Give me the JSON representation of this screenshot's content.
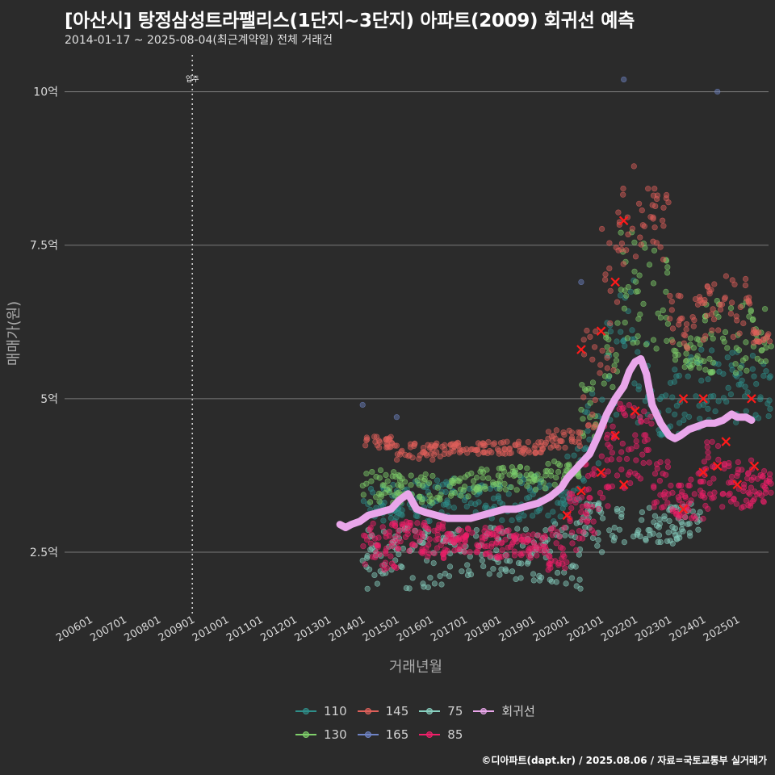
{
  "header": {
    "title": "[아산시] 탕정삼성트라팰리스(1단지~3단지) 아파트(2009) 회귀선 예측",
    "subtitle": "2014-01-17 ~ 2025-08-04(최근계약일) 전체 거래건"
  },
  "footer": {
    "caption": "©디아파트(dapt.kr) / 2025.08.06 / 자료=국토교통부 실거래가"
  },
  "chart_data": {
    "type": "scatter",
    "title": "[아산시] 탕정삼성트라팰리스(1단지~3단지) 아파트(2009) 회귀선 예측",
    "xlabel": "거래년월",
    "ylabel": "매매가(원)",
    "x_range": [
      "2005-04",
      "2025-12"
    ],
    "ylim": [
      1.5,
      10.6
    ],
    "y_unit": "억",
    "y_ticks": [
      {
        "value": 2.5,
        "label": "2.5억"
      },
      {
        "value": 5,
        "label": "5억"
      },
      {
        "value": 7.5,
        "label": "7.5억"
      },
      {
        "value": 10,
        "label": "10억"
      }
    ],
    "x_ticks": [
      "200601",
      "200701",
      "200801",
      "200901",
      "201001",
      "201101",
      "201201",
      "201301",
      "201401",
      "201501",
      "201601",
      "201701",
      "201801",
      "201901",
      "202001",
      "202101",
      "202201",
      "202301",
      "202401",
      "202501"
    ],
    "annotation": {
      "label": "입주",
      "date": "2009-01"
    },
    "grid": "horizontal",
    "legend_position": "bottom",
    "legend": [
      {
        "name": "110",
        "color": "#2f8f8a"
      },
      {
        "name": "130",
        "color": "#7fcf6a"
      },
      {
        "name": "145",
        "color": "#e0605a"
      },
      {
        "name": "165",
        "color": "#6f84c6"
      },
      {
        "name": "75",
        "color": "#88d0c0"
      },
      {
        "name": "85",
        "color": "#f0206a"
      },
      {
        "name": "회귀선",
        "color": "#e9a6ea"
      }
    ],
    "regression_line": {
      "name": "회귀선",
      "x": [
        "2013-05",
        "2013-07",
        "2013-09",
        "2013-12",
        "2014-03",
        "2014-07",
        "2014-11",
        "2015-02",
        "2015-05",
        "2015-08",
        "2015-11",
        "2016-03",
        "2016-07",
        "2016-11",
        "2017-03",
        "2017-07",
        "2017-11",
        "2018-03",
        "2018-07",
        "2018-11",
        "2019-03",
        "2019-07",
        "2019-11",
        "2020-01",
        "2020-05",
        "2020-09",
        "2020-12",
        "2021-03",
        "2021-06",
        "2021-09",
        "2021-11",
        "2022-01",
        "2022-03",
        "2022-05",
        "2022-07",
        "2022-10",
        "2023-01",
        "2023-03",
        "2023-05",
        "2023-08",
        "2023-11",
        "2024-02",
        "2024-05",
        "2024-08",
        "2024-11",
        "2025-01",
        "2025-04",
        "2025-06"
      ],
      "y": [
        2.95,
        2.9,
        2.95,
        3.0,
        3.1,
        3.15,
        3.2,
        3.35,
        3.45,
        3.2,
        3.15,
        3.1,
        3.05,
        3.05,
        3.05,
        3.1,
        3.15,
        3.2,
        3.2,
        3.25,
        3.3,
        3.4,
        3.55,
        3.7,
        3.9,
        4.1,
        4.4,
        4.75,
        5.0,
        5.2,
        5.45,
        5.6,
        5.65,
        5.4,
        4.9,
        4.6,
        4.4,
        4.35,
        4.4,
        4.5,
        4.55,
        4.6,
        4.6,
        4.65,
        4.75,
        4.7,
        4.7,
        4.65
      ]
    },
    "scatter_series": [
      {
        "name": "110",
        "periods": [
          [
            "2014-01",
            3.0,
            3.6
          ],
          [
            "2015-06",
            3.0,
            3.7
          ],
          [
            "2017-01",
            3.0,
            3.6
          ],
          [
            "2018-06",
            3.0,
            3.8
          ],
          [
            "2019-06",
            3.0,
            3.6
          ],
          [
            "2020-01",
            3.3,
            4.2
          ],
          [
            "2020-07",
            3.8,
            5.2
          ],
          [
            "2021-01",
            4.6,
            6.3
          ],
          [
            "2021-07",
            5.0,
            7.0
          ],
          [
            "2022-01",
            4.6,
            6.0
          ],
          [
            "2022-07",
            4.4,
            5.2
          ],
          [
            "2023-01",
            4.4,
            5.5
          ],
          [
            "2023-07",
            4.5,
            5.8
          ],
          [
            "2024-01",
            4.5,
            5.8
          ],
          [
            "2024-07",
            4.6,
            5.8
          ],
          [
            "2025-01",
            4.6,
            5.8
          ],
          [
            "2025-07",
            4.6,
            5.6
          ]
        ]
      },
      {
        "name": "130",
        "periods": [
          [
            "2014-01",
            3.3,
            3.9
          ],
          [
            "2015-01",
            3.3,
            3.8
          ],
          [
            "2016-06",
            3.4,
            3.8
          ],
          [
            "2017-06",
            3.5,
            3.9
          ],
          [
            "2018-06",
            3.5,
            3.9
          ],
          [
            "2019-06",
            3.6,
            4.0
          ],
          [
            "2020-06",
            4.3,
            5.3
          ],
          [
            "2021-01",
            5.1,
            6.3
          ],
          [
            "2021-07",
            5.8,
            8.0
          ],
          [
            "2022-01",
            5.8,
            7.6
          ],
          [
            "2023-01",
            5.5,
            6.0
          ],
          [
            "2024-01",
            5.4,
            6.6
          ],
          [
            "2025-07",
            5.5,
            6.5
          ]
        ]
      },
      {
        "name": "145",
        "periods": [
          [
            "2014-01",
            4.2,
            4.4
          ],
          [
            "2015-01",
            4.0,
            4.3
          ],
          [
            "2016-06",
            4.1,
            4.3
          ],
          [
            "2017-06",
            4.1,
            4.3
          ],
          [
            "2018-06",
            4.1,
            4.3
          ],
          [
            "2019-06",
            4.2,
            4.5
          ],
          [
            "2020-06",
            4.5,
            6.2
          ],
          [
            "2021-01",
            5.4,
            7.8
          ],
          [
            "2021-07",
            6.8,
            8.9
          ],
          [
            "2022-01",
            7.2,
            8.5
          ],
          [
            "2023-01",
            5.8,
            6.8
          ],
          [
            "2024-01",
            5.8,
            7.0
          ],
          [
            "2025-07",
            5.9,
            6.2
          ]
        ]
      },
      {
        "name": "165",
        "periods": [
          [
            "2014-01",
            4.9,
            4.9
          ],
          [
            "2015-01",
            4.7,
            4.7
          ],
          [
            "2020-06",
            6.9,
            6.9
          ],
          [
            "2021-09",
            10.2,
            10.2
          ],
          [
            "2024-06",
            10.0,
            10.0
          ]
        ]
      },
      {
        "name": "75",
        "periods": [
          [
            "2014-01",
            1.9,
            2.9
          ],
          [
            "2016-06",
            2.1,
            2.9
          ],
          [
            "2018-06",
            2.0,
            2.9
          ],
          [
            "2019-06",
            1.9,
            3.0
          ],
          [
            "2020-06",
            2.5,
            3.3
          ],
          [
            "2021-06",
            2.6,
            3.3
          ],
          [
            "2023-06",
            2.7,
            3.3
          ]
        ]
      },
      {
        "name": "85",
        "periods": [
          [
            "2014-01",
            2.2,
            3.0
          ],
          [
            "2015-01",
            2.4,
            3.0
          ],
          [
            "2016-06",
            2.5,
            2.9
          ],
          [
            "2017-06",
            2.4,
            2.9
          ],
          [
            "2018-06",
            2.4,
            2.8
          ],
          [
            "2019-06",
            2.2,
            2.9
          ],
          [
            "2020-01",
            2.5,
            3.5
          ],
          [
            "2020-07",
            2.8,
            4.0
          ],
          [
            "2021-01",
            3.2,
            4.6
          ],
          [
            "2021-07",
            3.5,
            5.0
          ],
          [
            "2022-01",
            3.6,
            4.8
          ],
          [
            "2022-07",
            3.2,
            4.0
          ],
          [
            "2023-01",
            3.0,
            3.6
          ],
          [
            "2023-07",
            3.0,
            3.8
          ],
          [
            "2024-01",
            3.2,
            4.3
          ],
          [
            "2024-07",
            3.2,
            4.0
          ],
          [
            "2025-07",
            3.3,
            3.9
          ]
        ]
      }
    ],
    "monthly_mean_markers": {
      "85": [
        [
          "2020-01",
          3.1
        ],
        [
          "2020-06",
          3.5
        ],
        [
          "2021-01",
          3.8
        ],
        [
          "2021-06",
          4.4
        ],
        [
          "2021-09",
          3.6
        ],
        [
          "2022-01",
          4.8
        ],
        [
          "2023-06",
          3.2
        ],
        [
          "2024-01",
          3.8
        ],
        [
          "2024-06",
          3.9
        ],
        [
          "2024-09",
          4.3
        ],
        [
          "2025-01",
          3.6
        ],
        [
          "2025-07",
          3.9
        ]
      ],
      "145": [
        [
          "2020-06",
          5.8
        ],
        [
          "2021-01",
          6.1
        ],
        [
          "2021-06",
          6.9
        ],
        [
          "2021-09",
          7.9
        ],
        [
          "2023-06",
          5.0
        ],
        [
          "2024-01",
          5.0
        ],
        [
          "2025-06",
          5.0
        ]
      ]
    }
  }
}
